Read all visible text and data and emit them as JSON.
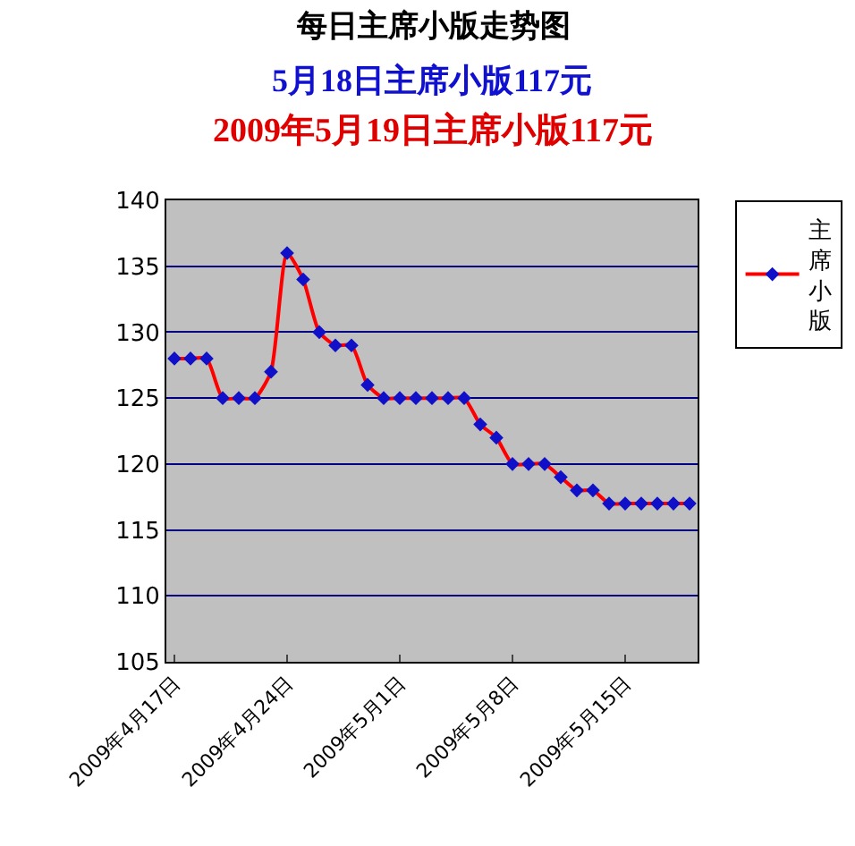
{
  "chart_data": {
    "type": "line",
    "title": "每日主席小版走势图",
    "subtitle": "5月18日主席小版117元",
    "annotations": [
      "2009年5月19日主席小版117元"
    ],
    "x": [
      "2009-04-17",
      "2009-04-18",
      "2009-04-19",
      "2009-04-20",
      "2009-04-21",
      "2009-04-22",
      "2009-04-23",
      "2009-04-24",
      "2009-04-25",
      "2009-04-26",
      "2009-04-27",
      "2009-04-28",
      "2009-04-29",
      "2009-04-30",
      "2009-05-01",
      "2009-05-02",
      "2009-05-03",
      "2009-05-04",
      "2009-05-05",
      "2009-05-06",
      "2009-05-07",
      "2009-05-08",
      "2009-05-09",
      "2009-05-10",
      "2009-05-11",
      "2009-05-12",
      "2009-05-13",
      "2009-05-14",
      "2009-05-15",
      "2009-05-16",
      "2009-05-17",
      "2009-05-18",
      "2009-05-19"
    ],
    "series": [
      {
        "name": "主席小版",
        "color": "#ff0000",
        "values": [
          128,
          128,
          128,
          125,
          125,
          125,
          127,
          136,
          134,
          130,
          129,
          129,
          126,
          125,
          125,
          125,
          125,
          125,
          125,
          123,
          122,
          120,
          120,
          120,
          119,
          118,
          118,
          117,
          117,
          117,
          117,
          117,
          117
        ]
      }
    ],
    "xlim": [
      "2009-04-16T12:00",
      "2009-05-19T12:00"
    ],
    "xticks": [
      {
        "value": "2009-04-17",
        "label": "2009年4月17日"
      },
      {
        "value": "2009-04-24",
        "label": "2009年4月24日"
      },
      {
        "value": "2009-05-01",
        "label": "2009年5月1日"
      },
      {
        "value": "2009-05-08",
        "label": "2009年5月8日"
      },
      {
        "value": "2009-05-15",
        "label": "2009年5月15日"
      }
    ],
    "ylim": [
      105,
      140
    ],
    "yticks": [
      105,
      110,
      115,
      120,
      125,
      130,
      135,
      140
    ],
    "grid": "y",
    "legend": "right",
    "marker": "diamond",
    "line_style": "solid"
  }
}
